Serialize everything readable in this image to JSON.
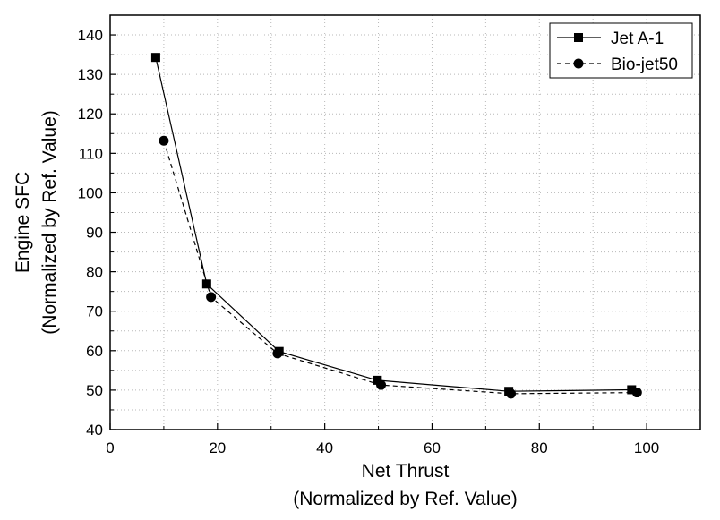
{
  "chart_data": {
    "type": "line",
    "xlabel_line1": "Net Thrust",
    "xlabel_line2": "(Normalized by Ref. Value)",
    "ylabel_line1": "Engine SFC",
    "ylabel_line2": "(Normalized by Ref. Value)",
    "xlim": [
      0,
      110
    ],
    "ylim": [
      40,
      145
    ],
    "xticks": [
      0,
      20,
      40,
      60,
      80,
      100
    ],
    "yticks": [
      40,
      50,
      60,
      70,
      80,
      90,
      100,
      110,
      120,
      130,
      140
    ],
    "grid": "dotted",
    "legend_position": "top-right",
    "series": [
      {
        "name": "Jet A-1",
        "marker": "square",
        "line": "solid",
        "x": [
          8.5,
          18.0,
          31.5,
          49.8,
          74.3,
          97.2
        ],
        "y": [
          134.3,
          76.9,
          59.8,
          52.5,
          49.7,
          50.1
        ]
      },
      {
        "name": "Bio-jet50",
        "marker": "circle",
        "line": "dashed",
        "x": [
          10.0,
          18.8,
          31.2,
          50.5,
          74.7,
          98.2
        ],
        "y": [
          113.2,
          73.6,
          59.3,
          51.3,
          49.1,
          49.4
        ]
      }
    ]
  }
}
